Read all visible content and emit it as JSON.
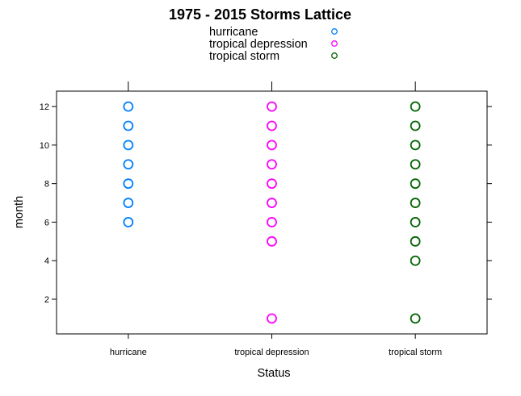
{
  "chart_data": {
    "type": "scatter",
    "title": "1975 - 2015 Storms Lattice",
    "xlabel": "Status",
    "ylabel": "month",
    "categories": [
      "hurricane",
      "tropical depression",
      "tropical storm"
    ],
    "ylim": [
      0.2,
      12.8
    ],
    "yticks": [
      2,
      4,
      6,
      8,
      10,
      12
    ],
    "legend_position": "top",
    "grid": false,
    "series": [
      {
        "name": "hurricane",
        "color": "#0080ff",
        "x": "hurricane",
        "values": [
          6,
          7,
          8,
          9,
          10,
          11,
          12
        ]
      },
      {
        "name": "tropical depression",
        "color": "#ff00ff",
        "x": "tropical depression",
        "values": [
          1,
          5,
          6,
          7,
          8,
          9,
          10,
          11,
          12
        ]
      },
      {
        "name": "tropical storm",
        "color": "#006400",
        "x": "tropical storm",
        "values": [
          1,
          4,
          5,
          6,
          7,
          8,
          9,
          10,
          11,
          12
        ]
      }
    ]
  }
}
